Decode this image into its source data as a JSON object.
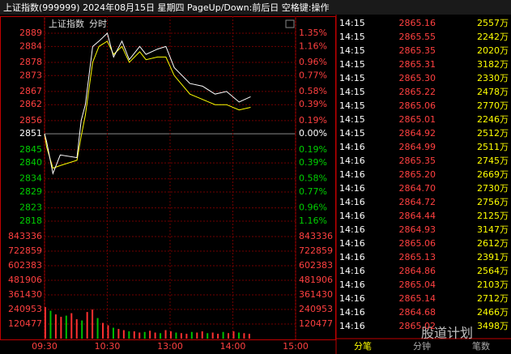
{
  "header": {
    "title": "上证指数(999999) 2024年08月15日 星期四 PageUp/Down:前后日 空格键:操作"
  },
  "chart": {
    "name": "上证指数",
    "mode": "分时",
    "xlim": [
      0,
      240
    ],
    "xticks": [
      {
        "value": 0,
        "label": "09:30"
      },
      {
        "value": 60,
        "label": "10:30"
      },
      {
        "value": 120,
        "label": "13:00"
      },
      {
        "value": 180,
        "label": "14:00"
      },
      {
        "value": 240,
        "label": "15:00"
      }
    ],
    "ylim": [
      2818,
      2889
    ],
    "yticks": [
      2889,
      2884,
      2878,
      2873,
      2867,
      2862,
      2856,
      2851,
      2845,
      2840,
      2834,
      2829,
      2823,
      2818
    ],
    "pct_labels": [
      "1.35%",
      "1.16%",
      "0.96%",
      "0.77%",
      "0.58%",
      "0.39%",
      "0.19%",
      "0.00%",
      "0.19%",
      "0.39%",
      "0.58%",
      "0.77%",
      "0.96%",
      "1.16%"
    ],
    "price": {
      "color": "#ffffff",
      "x": [
        0,
        2,
        8,
        15,
        31,
        35,
        39,
        46,
        52,
        60,
        66,
        74,
        81,
        91,
        97,
        108,
        116,
        124,
        139,
        151,
        163,
        174,
        186,
        197
      ],
      "values": [
        2851,
        2848,
        2836,
        2843,
        2842,
        2856,
        2862,
        2884,
        2886,
        2889,
        2880,
        2886,
        2879,
        2884,
        2881,
        2883,
        2884,
        2876,
        2870,
        2869,
        2866,
        2867,
        2863,
        2865
      ]
    },
    "average": {
      "color": "#ffff00",
      "x": [
        0,
        2,
        8,
        15,
        31,
        35,
        39,
        46,
        52,
        60,
        66,
        74,
        81,
        91,
        97,
        108,
        116,
        124,
        139,
        151,
        163,
        174,
        186,
        197
      ],
      "values": [
        2851,
        2846,
        2838,
        2839,
        2841,
        2850,
        2858,
        2878,
        2884,
        2886,
        2881,
        2884,
        2878,
        2882,
        2879,
        2880,
        2880,
        2873,
        2866,
        2864,
        2862,
        2862,
        2860,
        2861
      ]
    },
    "vlim": [
      0,
      843336
    ],
    "vticks": [
      843336,
      722859,
      602383,
      481906,
      361430,
      240953,
      120477
    ],
    "volume": {
      "x": [
        0,
        5,
        10,
        15,
        20,
        25,
        30,
        35,
        40,
        45,
        50,
        55,
        60,
        65,
        70,
        75,
        80,
        85,
        90,
        95,
        100,
        105,
        110,
        115,
        120,
        125,
        130,
        135,
        140,
        145,
        150,
        155,
        160,
        165,
        170,
        175,
        180,
        185,
        190,
        195
      ],
      "values": [
        260000,
        230000,
        200000,
        180000,
        190000,
        210000,
        160000,
        150000,
        220000,
        240000,
        170000,
        130000,
        110000,
        90000,
        80000,
        70000,
        60000,
        60000,
        50000,
        55000,
        65000,
        50000,
        45000,
        70000,
        60000,
        50000,
        45000,
        40000,
        55000,
        50000,
        60000,
        45000,
        50000,
        40000,
        55000,
        45000,
        60000,
        50000,
        45000,
        40000
      ]
    }
  },
  "ticks_table": {
    "rows": [
      [
        "14:15",
        "2865.16",
        "2557万"
      ],
      [
        "14:15",
        "2865.55",
        "2242万"
      ],
      [
        "14:15",
        "2865.35",
        "2020万"
      ],
      [
        "14:15",
        "2865.31",
        "3182万"
      ],
      [
        "14:15",
        "2865.30",
        "2330万"
      ],
      [
        "14:15",
        "2865.22",
        "2478万"
      ],
      [
        "14:15",
        "2865.06",
        "2770万"
      ],
      [
        "14:15",
        "2865.01",
        "2246万"
      ],
      [
        "14:15",
        "2864.92",
        "2512万"
      ],
      [
        "14:16",
        "2864.99",
        "2511万"
      ],
      [
        "14:16",
        "2865.35",
        "2745万"
      ],
      [
        "14:16",
        "2865.20",
        "2669万"
      ],
      [
        "14:16",
        "2864.70",
        "2730万"
      ],
      [
        "14:16",
        "2864.72",
        "2756万"
      ],
      [
        "14:16",
        "2864.44",
        "2125万"
      ],
      [
        "14:16",
        "2864.93",
        "3147万"
      ],
      [
        "14:16",
        "2865.06",
        "2612万"
      ],
      [
        "14:16",
        "2865.13",
        "2391万"
      ],
      [
        "14:16",
        "2864.86",
        "2564万"
      ],
      [
        "14:16",
        "2865.04",
        "2103万"
      ],
      [
        "14:16",
        "2865.14",
        "2712万"
      ],
      [
        "14:16",
        "2864.68",
        "2466万"
      ],
      [
        "14:16",
        "2865.02",
        "3498万"
      ]
    ],
    "tabs": [
      "分笔",
      "分钟",
      "笔数"
    ]
  },
  "watermark": "股道计划"
}
